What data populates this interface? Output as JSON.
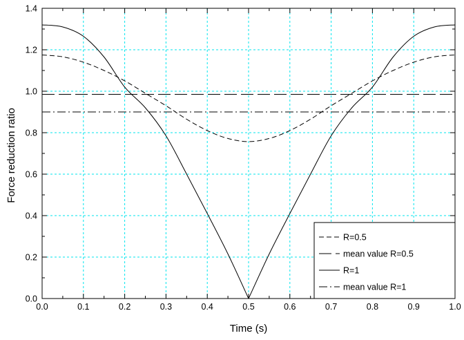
{
  "chart_data": {
    "type": "line",
    "title": "",
    "xlabel": "Time (s)",
    "ylabel": "Force reduction ratio",
    "xlim": [
      0,
      1
    ],
    "ylim": [
      0,
      1.4
    ],
    "xticks": [
      "0.0",
      "0.1",
      "0.2",
      "0.3",
      "0.4",
      "0.5",
      "0.6",
      "0.7",
      "0.8",
      "0.9",
      "1.0"
    ],
    "yticks": [
      "0.0",
      "0.2",
      "0.4",
      "0.6",
      "0.8",
      "1.0",
      "1.2",
      "1.4"
    ],
    "grid": true,
    "grid_color": "#00e5ee",
    "legend_position": "bottom-right",
    "x": [
      0,
      0.05,
      0.1,
      0.15,
      0.2,
      0.25,
      0.3,
      0.35,
      0.4,
      0.45,
      0.5,
      0.55,
      0.6,
      0.65,
      0.7,
      0.75,
      0.8,
      0.85,
      0.9,
      0.95,
      1.0
    ],
    "series": [
      {
        "name": "R=0.5",
        "dash": "dashed",
        "values": [
          1.175,
          1.166,
          1.14,
          1.1,
          1.05,
          0.99,
          0.93,
          0.865,
          0.81,
          0.772,
          0.757,
          0.772,
          0.81,
          0.865,
          0.93,
          0.99,
          1.05,
          1.1,
          1.14,
          1.166,
          1.175
        ]
      },
      {
        "name": "mean value R=0.5",
        "dash": "long-dashed",
        "values": [
          0.985,
          0.985,
          0.985,
          0.985,
          0.985,
          0.985,
          0.985,
          0.985,
          0.985,
          0.985,
          0.985,
          0.985,
          0.985,
          0.985,
          0.985,
          0.985,
          0.985,
          0.985,
          0.985,
          0.985,
          0.985
        ]
      },
      {
        "name": "R=1",
        "dash": "solid",
        "values": [
          1.32,
          1.31,
          1.265,
          1.165,
          1.02,
          0.92,
          0.785,
          0.6,
          0.41,
          0.215,
          0.0,
          0.215,
          0.41,
          0.6,
          0.785,
          0.92,
          1.02,
          1.165,
          1.265,
          1.31,
          1.32
        ]
      },
      {
        "name": "mean value R=1",
        "dash": "dash-dot",
        "values": [
          0.9,
          0.9,
          0.9,
          0.9,
          0.9,
          0.9,
          0.9,
          0.9,
          0.9,
          0.9,
          0.9,
          0.9,
          0.9,
          0.9,
          0.9,
          0.9,
          0.9,
          0.9,
          0.9,
          0.9,
          0.9
        ]
      }
    ]
  }
}
